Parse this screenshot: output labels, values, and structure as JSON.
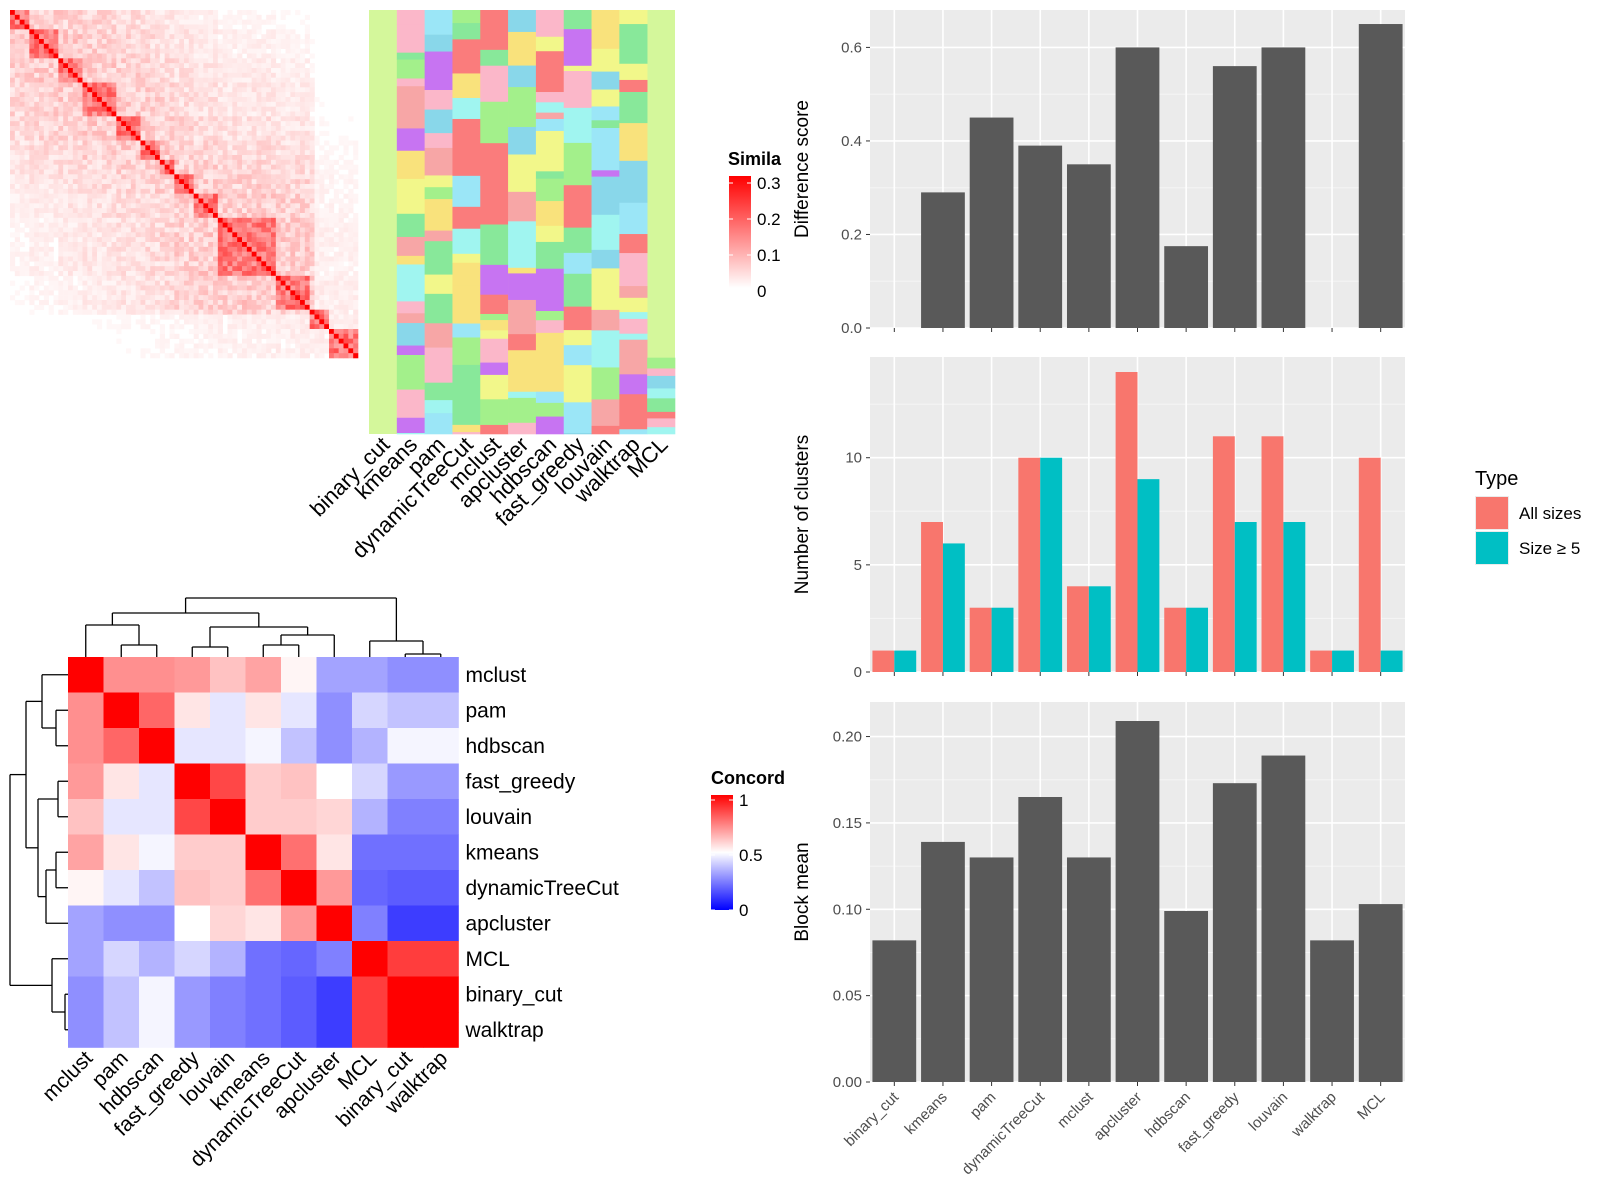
{
  "colors": {
    "panel_bg": "#EBEBEB",
    "grid": "#FFFFFF",
    "bar": "#595959",
    "all_sizes": "#F8766D",
    "size_ge5": "#00BFC4",
    "sim_low": "#FFFFFF",
    "sim_high": "#FF0000",
    "conc_low": "#0000FF",
    "conc_mid": "#FFFFFF",
    "conc_high": "#FF0000"
  },
  "methods": [
    "binary_cut",
    "kmeans",
    "pam",
    "dynamicTreeCut",
    "mclust",
    "apcluster",
    "hdbscan",
    "fast_greedy",
    "louvain",
    "walktrap",
    "MCL"
  ],
  "similarity_legend": {
    "title": "Simila",
    "ticks": [
      "0.3",
      "0.2",
      "0.1",
      "0"
    ]
  },
  "concordance": {
    "legend_title": "Concord",
    "legend_ticks": [
      "1",
      "0.5",
      "0"
    ],
    "order": [
      "mclust",
      "pam",
      "hdbscan",
      "fast_greedy",
      "louvain",
      "kmeans",
      "dynamicTreeCut",
      "apcluster",
      "MCL",
      "binary_cut",
      "walktrap"
    ],
    "matrix": [
      [
        1.0,
        0.72,
        0.72,
        0.7,
        0.62,
        0.68,
        0.52,
        0.32,
        0.32,
        0.28,
        0.28
      ],
      [
        0.72,
        1.0,
        0.8,
        0.55,
        0.45,
        0.55,
        0.45,
        0.28,
        0.42,
        0.38,
        0.38
      ],
      [
        0.72,
        0.8,
        1.0,
        0.45,
        0.45,
        0.48,
        0.38,
        0.28,
        0.35,
        0.48,
        0.48
      ],
      [
        0.7,
        0.55,
        0.45,
        1.0,
        0.86,
        0.6,
        0.62,
        0.5,
        0.42,
        0.3,
        0.3
      ],
      [
        0.62,
        0.45,
        0.45,
        0.86,
        1.0,
        0.6,
        0.6,
        0.58,
        0.35,
        0.25,
        0.25
      ],
      [
        0.68,
        0.55,
        0.48,
        0.6,
        0.6,
        1.0,
        0.78,
        0.55,
        0.22,
        0.22,
        0.22
      ],
      [
        0.52,
        0.45,
        0.38,
        0.62,
        0.6,
        0.78,
        1.0,
        0.7,
        0.2,
        0.18,
        0.18
      ],
      [
        0.32,
        0.28,
        0.28,
        0.5,
        0.58,
        0.55,
        0.7,
        1.0,
        0.25,
        0.12,
        0.12
      ],
      [
        0.32,
        0.42,
        0.35,
        0.42,
        0.35,
        0.22,
        0.2,
        0.25,
        1.0,
        0.88,
        0.88
      ],
      [
        0.28,
        0.38,
        0.48,
        0.3,
        0.25,
        0.22,
        0.18,
        0.12,
        0.88,
        1.0,
        1.0
      ],
      [
        0.28,
        0.38,
        0.48,
        0.3,
        0.25,
        0.22,
        0.18,
        0.12,
        0.88,
        1.0,
        1.0
      ]
    ]
  },
  "chart_data": [
    {
      "type": "heatmap",
      "title": "",
      "description_key": "similarity_matrix",
      "legend_title": "Simila",
      "value_range": [
        0,
        0.3
      ]
    },
    {
      "type": "bar",
      "ylabel": "Difference score",
      "categories": [
        "binary_cut",
        "kmeans",
        "pam",
        "dynamicTreeCut",
        "mclust",
        "apcluster",
        "hdbscan",
        "fast_greedy",
        "louvain",
        "walktrap",
        "MCL"
      ],
      "values": [
        0,
        0.29,
        0.45,
        0.39,
        0.35,
        0.6,
        0.175,
        0.56,
        0.6,
        0,
        0.65
      ],
      "ylim": [
        0,
        0.68
      ],
      "yticks": [
        "0.0",
        "0.2",
        "0.4",
        "0.6"
      ]
    },
    {
      "type": "bar",
      "ylabel": "Number of clusters",
      "categories": [
        "binary_cut",
        "kmeans",
        "pam",
        "dynamicTreeCut",
        "mclust",
        "apcluster",
        "hdbscan",
        "fast_greedy",
        "louvain",
        "walktrap",
        "MCL"
      ],
      "legend_title": "Type",
      "series": [
        {
          "name": "All sizes",
          "values": [
            1,
            7,
            3,
            10,
            4,
            14,
            3,
            11,
            11,
            1,
            10
          ]
        },
        {
          "name": "Size ≥ 5",
          "values": [
            1,
            6,
            3,
            10,
            4,
            9,
            3,
            7,
            7,
            1,
            1
          ]
        }
      ],
      "ylim": [
        0,
        14.7
      ],
      "yticks": [
        "0",
        "5",
        "10"
      ]
    },
    {
      "type": "bar",
      "ylabel": "Block mean",
      "categories": [
        "binary_cut",
        "kmeans",
        "pam",
        "dynamicTreeCut",
        "mclust",
        "apcluster",
        "hdbscan",
        "fast_greedy",
        "louvain",
        "walktrap",
        "MCL"
      ],
      "values": [
        0.082,
        0.139,
        0.13,
        0.165,
        0.13,
        0.209,
        0.099,
        0.173,
        0.189,
        0.082,
        0.103
      ],
      "ylim": [
        0,
        0.22
      ],
      "yticks": [
        "0.00",
        "0.05",
        "0.10",
        "0.15",
        "0.20"
      ]
    }
  ]
}
